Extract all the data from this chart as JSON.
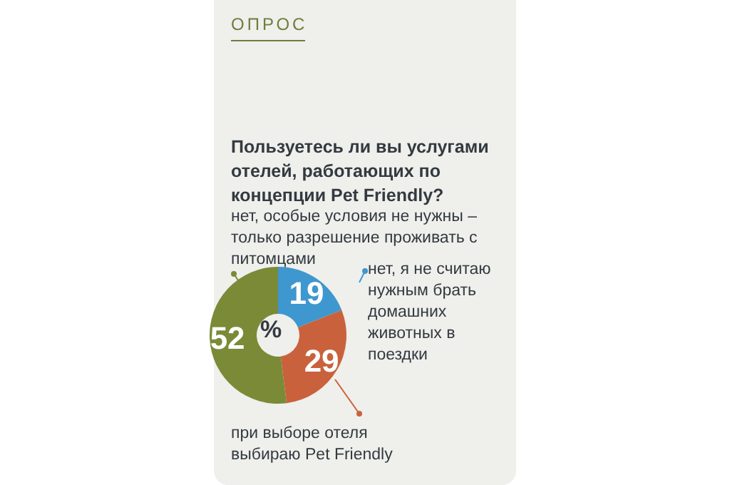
{
  "chart_data": {
    "type": "donut",
    "subtitle": "ОПРОС",
    "title": "Пользуетесь ли вы услугами отелей,  работающих по концепции Pet Friendly?",
    "categories": [
      "нет, я не считаю нужным брать домашних животных в поездки",
      "при выборе отеля выбираю Pet Friendly",
      "нет, особые условия не нужны – только разрешение проживать с питомцами"
    ],
    "values": [
      19,
      29,
      52
    ],
    "colors": [
      "#3f97cf",
      "#c9623c",
      "#7b8a37"
    ],
    "data_labels": true,
    "legend": "right",
    "annotations": [
      "%"
    ]
  }
}
